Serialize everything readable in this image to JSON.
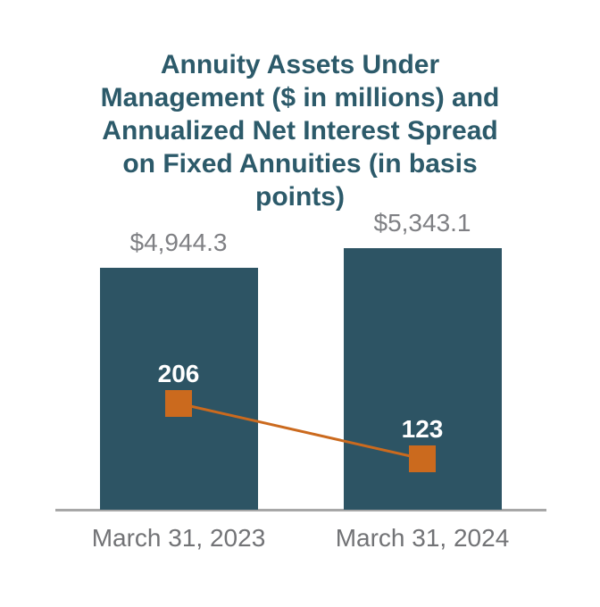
{
  "chart": {
    "title_lines": [
      "Annuity Assets Under",
      "Management ($ in millions) and",
      "Annualized Net Interest Spread",
      "on Fixed Annuities (in basis",
      "points)"
    ]
  },
  "chart_data": {
    "type": "bar",
    "subtype": "bar-with-line-overlay",
    "title": "Annuity Assets Under Management ($ in millions) and Annualized Net Interest Spread on Fixed Annuities (in basis points)",
    "categories": [
      "March 31, 2023",
      "March 31, 2024"
    ],
    "series": [
      {
        "name": "Annuity Assets Under Management ($ in millions)",
        "type": "bar",
        "values": [
          4944.3,
          5343.1
        ],
        "labels": [
          "$4,944.3",
          "$5,343.1"
        ],
        "color": "#2D5464"
      },
      {
        "name": "Annualized Net Interest Spread on Fixed Annuities (in basis points)",
        "type": "line",
        "marker": "square",
        "values": [
          206,
          123
        ],
        "labels": [
          "206",
          "123"
        ],
        "color": "#CB6A1E"
      }
    ],
    "legend": "none",
    "grid": false,
    "y_axis_visible": false,
    "data_labels": "shown"
  },
  "colors": {
    "bar_teal": "#2D5464",
    "line_orange": "#CB6A1E",
    "title_teal": "#2C5A6A",
    "axis_gray": "#A7A7A7",
    "value_label_gray": "#7F8084",
    "category_label_gray": "#727376",
    "marker_label_white": "#FFFFFF",
    "background": "#FFFFFF"
  }
}
